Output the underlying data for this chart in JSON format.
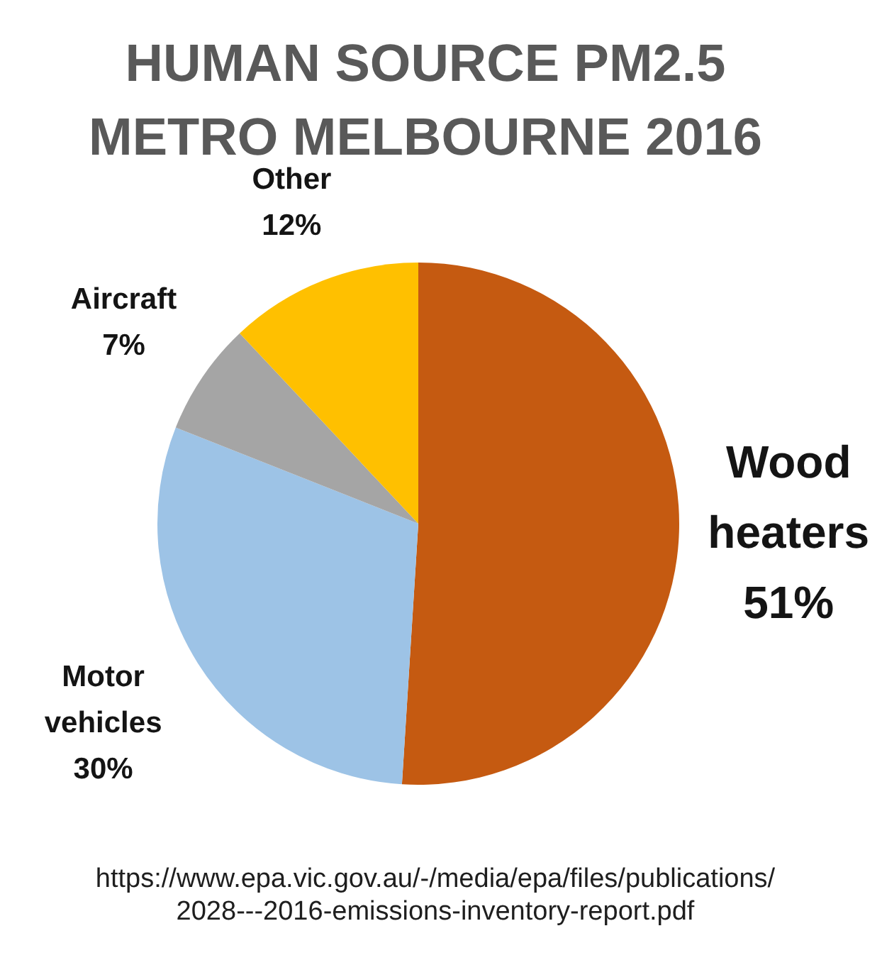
{
  "chart_data": {
    "type": "pie",
    "title": "HUMAN SOURCE PM2.5 METRO MELBOURNE 2016",
    "categories": [
      "Wood heaters",
      "Motor vehicles",
      "Aircraft",
      "Other"
    ],
    "values": [
      51,
      30,
      7,
      12
    ],
    "colors": [
      "#c55a11",
      "#9dc3e6",
      "#a5a5a5",
      "#ffc000"
    ],
    "value_labels": [
      "51%",
      "30%",
      "7%",
      "12%"
    ],
    "annotations": [
      "https://www.epa.vic.gov.au/-/media/epa/files/publications/2028---2016-emissions-inventory-report.pdf"
    ]
  }
}
